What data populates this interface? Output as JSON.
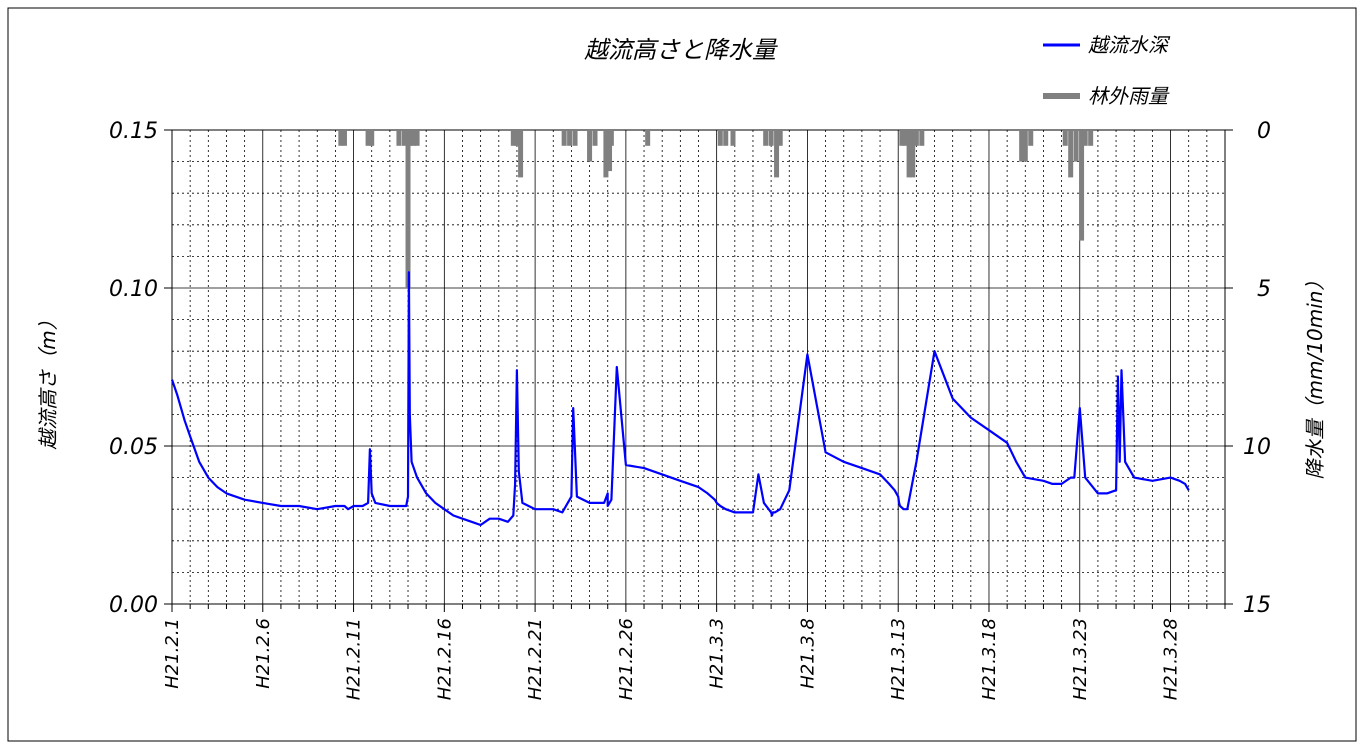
{
  "chart_data": {
    "type": "line",
    "title": "越流高さと降水量",
    "x_axis": {
      "ticks": [
        "H21.2.1",
        "H21.2.6",
        "H21.2.11",
        "H21.2.16",
        "H21.2.21",
        "H21.2.26",
        "H21.3.3",
        "H21.3.8",
        "H21.3.13",
        "H21.3.18",
        "H21.3.23",
        "H21.3.28"
      ],
      "range": [
        0,
        58
      ],
      "unit": "days from H21.2.1"
    },
    "y_axis_left": {
      "label": "越流高さ（m）",
      "ticks": [
        "0.00",
        "0.05",
        "0.10",
        "0.15"
      ],
      "range": [
        0,
        0.15
      ]
    },
    "y_axis_right": {
      "label": "降水量（mm/10min）",
      "ticks": [
        "0",
        "5",
        "10",
        "15"
      ],
      "range": [
        0,
        15
      ],
      "inverted": true
    },
    "grid": true,
    "legend": {
      "placement": "top-right",
      "entries": [
        {
          "name": "越流水深",
          "color": "#0000ff"
        },
        {
          "name": "林外雨量",
          "color": "#808080"
        }
      ]
    },
    "series": [
      {
        "name": "越流水深",
        "axis": "left",
        "color": "#0000ff",
        "x": [
          0,
          0.3,
          0.7,
          1,
          1.5,
          2,
          2.5,
          3,
          4,
          5,
          6,
          7,
          8,
          9,
          9.5,
          9.7,
          10,
          10.5,
          10.8,
          10.9,
          11,
          11.2,
          12,
          12.5,
          12.9,
          13,
          13.05,
          13.1,
          13.2,
          13.5,
          14,
          14.5,
          15,
          15.5,
          16,
          16.5,
          17,
          17.5,
          18,
          18.5,
          18.8,
          18.9,
          19,
          19.1,
          19.3,
          20,
          21,
          21.5,
          21.9,
          22,
          22.1,
          22.3,
          23,
          23.5,
          23.8,
          24,
          24,
          24.2,
          24.5,
          25,
          26,
          27,
          28,
          29,
          29.5,
          29.9,
          30,
          30.2,
          30.5,
          31,
          32,
          32.3,
          32.6,
          33,
          33.05,
          33.1,
          33.2,
          33.5,
          34,
          35,
          36,
          37,
          38,
          39,
          39.5,
          39.8,
          40,
          40.05,
          40.1,
          40.3,
          40.5,
          41,
          42,
          43,
          44,
          45,
          46,
          46.5,
          47,
          48,
          48.5,
          49,
          49.5,
          49.7,
          50,
          50.3,
          51,
          51.5,
          52,
          52.1,
          52.2,
          52.3,
          52.5,
          53,
          54,
          55,
          55.5,
          55.8,
          56
        ],
        "y": [
          0.071,
          0.066,
          0.058,
          0.053,
          0.045,
          0.04,
          0.037,
          0.035,
          0.033,
          0.032,
          0.031,
          0.031,
          0.03,
          0.031,
          0.031,
          0.03,
          0.031,
          0.031,
          0.032,
          0.049,
          0.035,
          0.032,
          0.031,
          0.031,
          0.031,
          0.034,
          0.105,
          0.06,
          0.045,
          0.04,
          0.035,
          0.032,
          0.03,
          0.028,
          0.027,
          0.026,
          0.025,
          0.027,
          0.027,
          0.026,
          0.028,
          0.038,
          0.074,
          0.042,
          0.032,
          0.03,
          0.03,
          0.029,
          0.033,
          0.034,
          0.062,
          0.034,
          0.032,
          0.032,
          0.032,
          0.035,
          0.031,
          0.033,
          0.075,
          0.044,
          0.043,
          0.041,
          0.039,
          0.037,
          0.035,
          0.033,
          0.032,
          0.031,
          0.03,
          0.029,
          0.029,
          0.041,
          0.032,
          0.029,
          0.028,
          0.029,
          0.029,
          0.03,
          0.036,
          0.079,
          0.048,
          0.045,
          0.043,
          0.041,
          0.038,
          0.036,
          0.034,
          0.032,
          0.031,
          0.03,
          0.03,
          0.045,
          0.08,
          0.065,
          0.059,
          0.055,
          0.051,
          0.045,
          0.04,
          0.039,
          0.038,
          0.038,
          0.04,
          0.04,
          0.062,
          0.04,
          0.035,
          0.035,
          0.036,
          0.072,
          0.045,
          0.074,
          0.045,
          0.04,
          0.039,
          0.04,
          0.039,
          0.038,
          0.036
        ],
        "x_norm": [],
        "y_note": ""
      },
      {
        "name": "林外雨量",
        "axis": "right",
        "color": "#808080",
        "x": [
          9.3,
          9.5,
          10.8,
          11,
          12.5,
          12.8,
          13,
          13.1,
          13.3,
          13.5,
          18.8,
          19,
          19.2,
          21.6,
          21.9,
          22.2,
          23,
          23.3,
          23.9,
          24.1,
          24.2,
          26.2,
          30.2,
          30.5,
          30.9,
          32.7,
          33,
          33.3,
          33.5,
          40.2,
          40.4,
          40.6,
          40.8,
          41,
          41.3,
          46.8,
          47,
          47.3,
          49.2,
          49.5,
          49.8,
          50.1,
          50.3,
          50.6
        ],
        "y": [
          0.5,
          0.5,
          0.5,
          0.5,
          0.5,
          0.5,
          5,
          0.5,
          0.5,
          0.5,
          0.5,
          0.5,
          1.5,
          0.5,
          0.5,
          0.5,
          1,
          0.5,
          1.5,
          1.3,
          0.5,
          0.5,
          0.5,
          0.5,
          0.5,
          0.5,
          0.5,
          1.5,
          0.5,
          0.5,
          0.5,
          1.5,
          1.5,
          0.5,
          0.5,
          1,
          1,
          0.5,
          0.5,
          1.5,
          1,
          3.5,
          0.5,
          0.5
        ]
      }
    ]
  }
}
